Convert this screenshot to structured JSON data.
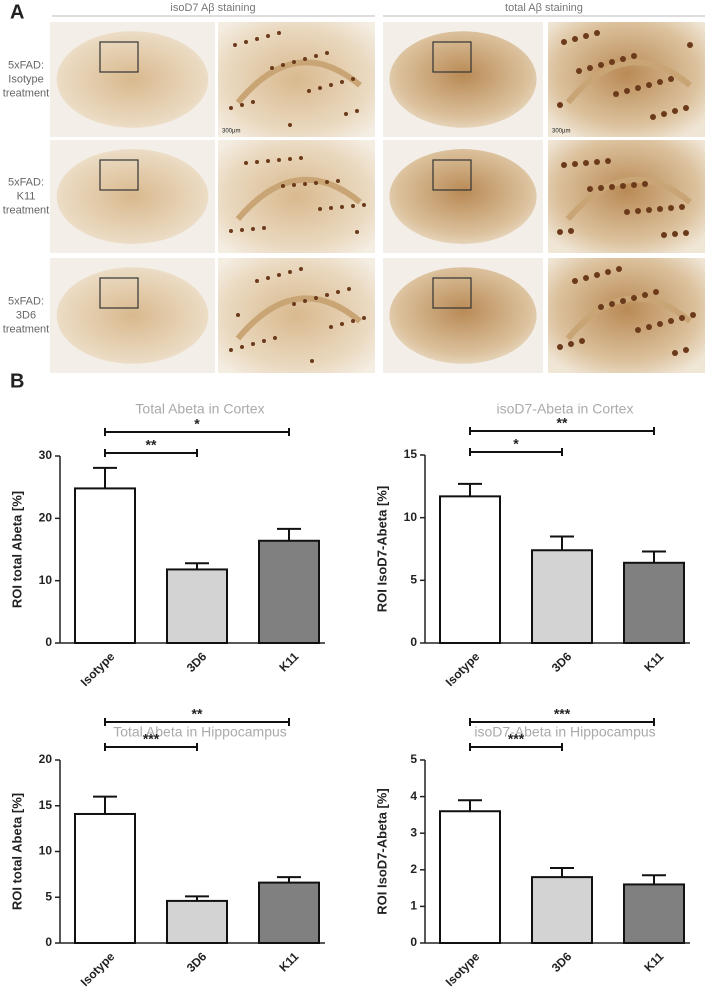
{
  "panel_a": {
    "label": "A",
    "columns": [
      "isoD7 Aβ staining",
      "total Aβ staining"
    ],
    "rows": [
      [
        "5xFAD:",
        "Isotype",
        "treatment"
      ],
      [
        "5xFAD:",
        "K11",
        "treatment"
      ],
      [
        "5xFAD:",
        "3D6",
        "treatment"
      ]
    ],
    "scale_bar": "300µm"
  },
  "panel_b": {
    "label": "B"
  },
  "chart_data": [
    {
      "type": "bar",
      "title": "Total Abeta in Cortex",
      "y_label": "ROI total Abeta [%]",
      "categories": [
        "Isotype",
        "3D6",
        "K11"
      ],
      "values": [
        24.8,
        11.8,
        16.4
      ],
      "errors": [
        3.3,
        1.0,
        1.9
      ],
      "colors": [
        "#ffffff",
        "#d3d3d3",
        "#808080"
      ],
      "ylim": [
        0,
        30
      ],
      "yticks": [
        0,
        10,
        20,
        30
      ],
      "comparisons": [
        {
          "label": "**"
        },
        {
          "label": "*"
        }
      ]
    },
    {
      "type": "bar",
      "title": "isoD7-Abeta in Cortex",
      "y_label": "ROI IsoD7-Abeta [%]",
      "categories": [
        "Isotype",
        "3D6",
        "K11"
      ],
      "values": [
        11.7,
        7.4,
        6.4
      ],
      "errors": [
        1.0,
        1.1,
        0.9
      ],
      "colors": [
        "#ffffff",
        "#d3d3d3",
        "#808080"
      ],
      "ylim": [
        0,
        15
      ],
      "yticks": [
        0,
        5,
        10,
        15
      ],
      "comparisons": [
        {
          "label": "*"
        },
        {
          "label": "**"
        }
      ]
    },
    {
      "type": "bar",
      "title": "Total Abeta in Hippocampus",
      "y_label": "ROI total Abeta [%]",
      "categories": [
        "Isotype",
        "3D6",
        "K11"
      ],
      "values": [
        14.1,
        4.6,
        6.6
      ],
      "errors": [
        1.9,
        0.5,
        0.6
      ],
      "colors": [
        "#ffffff",
        "#d3d3d3",
        "#808080"
      ],
      "ylim": [
        0,
        20
      ],
      "yticks": [
        0,
        5,
        10,
        15,
        20
      ],
      "comparisons": [
        {
          "label": "***"
        },
        {
          "label": "**"
        }
      ]
    },
    {
      "type": "bar",
      "title": "isoD7-Abeta in Hippocampus",
      "y_label": "ROI IsoD7-Abeta [%]",
      "categories": [
        "Isotype",
        "3D6",
        "K11"
      ],
      "values": [
        3.6,
        1.8,
        1.6
      ],
      "errors": [
        0.3,
        0.25,
        0.25
      ],
      "colors": [
        "#ffffff",
        "#d3d3d3",
        "#808080"
      ],
      "ylim": [
        0,
        5
      ],
      "yticks": [
        0,
        1,
        2,
        3,
        4,
        5
      ],
      "comparisons": [
        {
          "label": "***"
        },
        {
          "label": "***"
        }
      ]
    }
  ]
}
